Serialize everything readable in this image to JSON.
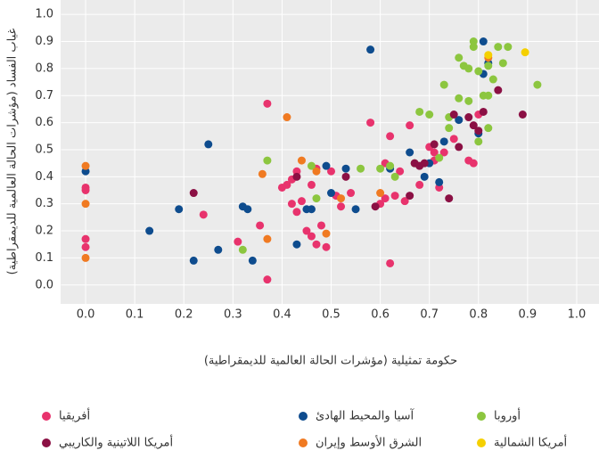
{
  "chart_data": {
    "type": "scatter",
    "xlabel": "حكومة تمثيلية (مؤشرات الحالة العالمية للديمقراطية)",
    "ylabel": "غياب الفساد (مؤشرات الحالة العالمية للديمقراطية)",
    "xlim": [
      -0.05,
      1.04
    ],
    "ylim": [
      -0.07,
      1.05
    ],
    "xticks": [
      {
        "value": 0,
        "label": "0.0"
      },
      0.1,
      0.2,
      0.3,
      0.4,
      0.5,
      0.6,
      0.7,
      0.8,
      0.9,
      {
        "value": 1,
        "label": "1.0"
      }
    ],
    "yticks": [
      {
        "value": 0,
        "label": "0.0"
      },
      0.1,
      0.2,
      0.3,
      0.4,
      0.5,
      0.6,
      0.7,
      0.8,
      0.9,
      {
        "value": 1,
        "label": "1.0"
      }
    ],
    "grid": true,
    "series": [
      {
        "name": "أفريقيا",
        "color": "#e8336d",
        "x": [
          0,
          0,
          0,
          0,
          0.24,
          0.31,
          0.355,
          0.37,
          0.37,
          0.4,
          0.41,
          0.42,
          0.42,
          0.43,
          0.44,
          0.45,
          0.46,
          0.46,
          0.47,
          0.48,
          0.49,
          0.5,
          0.51,
          0.52,
          0.54,
          0.58,
          0.6,
          0.61,
          0.61,
          0.62,
          0.62,
          0.63,
          0.64,
          0.65,
          0.66,
          0.68,
          0.7,
          0.71,
          0.71,
          0.72,
          0.73,
          0.75,
          0.78,
          0.79,
          0.8,
          0.47,
          0.43
        ],
        "values": [
          0.36,
          0.35,
          0.17,
          0.14,
          0.26,
          0.16,
          0.22,
          0.67,
          0.02,
          0.36,
          0.37,
          0.39,
          0.3,
          0.27,
          0.31,
          0.2,
          0.18,
          0.37,
          0.15,
          0.22,
          0.14,
          0.42,
          0.33,
          0.29,
          0.34,
          0.6,
          0.3,
          0.45,
          0.32,
          0.55,
          0.08,
          0.33,
          0.42,
          0.31,
          0.59,
          0.37,
          0.51,
          0.49,
          0.46,
          0.36,
          0.49,
          0.54,
          0.46,
          0.45,
          0.63,
          0.43,
          0.42
        ]
      },
      {
        "name": "آسيا والمحيط الهادئ",
        "color": "#0e4c8e",
        "x": [
          0,
          0.13,
          0.19,
          0.25,
          0.22,
          0.27,
          0.32,
          0.33,
          0.34,
          0.43,
          0.45,
          0.46,
          0.49,
          0.5,
          0.53,
          0.55,
          0.58,
          0.62,
          0.66,
          0.69,
          0.7,
          0.72,
          0.73,
          0.76,
          0.81,
          0.81,
          0.82,
          0.8
        ],
        "values": [
          0.42,
          0.2,
          0.28,
          0.52,
          0.09,
          0.13,
          0.29,
          0.28,
          0.09,
          0.15,
          0.28,
          0.28,
          0.44,
          0.34,
          0.43,
          0.28,
          0.87,
          0.43,
          0.49,
          0.4,
          0.45,
          0.38,
          0.53,
          0.61,
          0.78,
          0.9,
          0.82,
          0.56
        ]
      },
      {
        "name": "أوروبا",
        "color": "#8cc63f",
        "x": [
          0.32,
          0.37,
          0.46,
          0.47,
          0.56,
          0.6,
          0.62,
          0.63,
          0.67,
          0.68,
          0.7,
          0.72,
          0.73,
          0.74,
          0.74,
          0.76,
          0.77,
          0.78,
          0.78,
          0.79,
          0.79,
          0.8,
          0.81,
          0.82,
          0.82,
          0.82,
          0.83,
          0.84,
          0.85,
          0.86,
          0.92,
          0.8,
          0.76
        ],
        "values": [
          0.13,
          0.46,
          0.44,
          0.32,
          0.43,
          0.43,
          0.44,
          0.4,
          0.45,
          0.64,
          0.63,
          0.47,
          0.74,
          0.58,
          0.62,
          0.84,
          0.81,
          0.8,
          0.68,
          0.9,
          0.88,
          0.79,
          0.7,
          0.58,
          0.7,
          0.81,
          0.76,
          0.88,
          0.82,
          0.88,
          0.74,
          0.53,
          0.69
        ]
      },
      {
        "name": "أمريكا اللاتينية والكاريبي",
        "color": "#8b1044",
        "x": [
          0.22,
          0.43,
          0.53,
          0.59,
          0.66,
          0.67,
          0.68,
          0.69,
          0.71,
          0.74,
          0.75,
          0.76,
          0.78,
          0.79,
          0.8,
          0.81,
          0.84,
          0.89
        ],
        "values": [
          0.34,
          0.4,
          0.4,
          0.29,
          0.33,
          0.45,
          0.44,
          0.45,
          0.52,
          0.32,
          0.63,
          0.51,
          0.62,
          0.59,
          0.57,
          0.64,
          0.72,
          0.63
        ]
      },
      {
        "name": "الشرق الأوسط وإيران",
        "color": "#f07a22",
        "x": [
          0,
          0,
          0,
          0.36,
          0.37,
          0.41,
          0.44,
          0.47,
          0.49,
          0.52,
          0.6,
          0.82
        ],
        "values": [
          0.44,
          0.3,
          0.1,
          0.41,
          0.17,
          0.62,
          0.46,
          0.42,
          0.19,
          0.32,
          0.34,
          0.84
        ]
      },
      {
        "name": "أمريكا الشمالية",
        "color": "#f5d000",
        "x": [
          0.82,
          0.895
        ],
        "values": [
          0.85,
          0.86
        ]
      }
    ]
  }
}
